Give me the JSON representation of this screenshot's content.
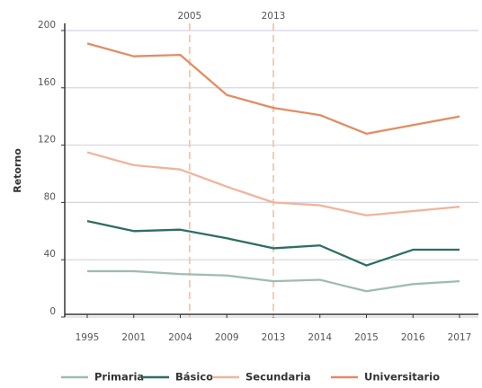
{
  "chart_data": {
    "type": "line",
    "y_label": "Retorno",
    "categories": [
      "1995",
      "2001",
      "2004",
      "2009",
      "2013",
      "2014",
      "2015",
      "2016",
      "2017"
    ],
    "series": [
      {
        "name": "Primaria",
        "color": "#9ebcb2",
        "values": [
          32,
          32,
          30,
          29,
          25,
          26,
          18,
          23,
          25
        ]
      },
      {
        "name": "Básico",
        "color": "#2e6e63",
        "values": [
          67,
          60,
          61,
          55,
          48,
          50,
          36,
          47,
          47
        ]
      },
      {
        "name": "Secundaria",
        "color": "#f0b49a",
        "values": [
          115,
          106,
          103,
          91,
          80,
          78,
          71,
          74,
          77
        ]
      },
      {
        "name": "Universitario",
        "color": "#e28d62",
        "values": [
          191,
          182,
          183,
          155,
          146,
          141,
          128,
          134,
          140
        ]
      }
    ],
    "ylim": [
      0,
      205
    ],
    "yticks": [
      0,
      40,
      80,
      120,
      160,
      200
    ],
    "grid": true,
    "annotations": [
      {
        "text": "2005"
      },
      {
        "text": "2013"
      }
    ]
  }
}
